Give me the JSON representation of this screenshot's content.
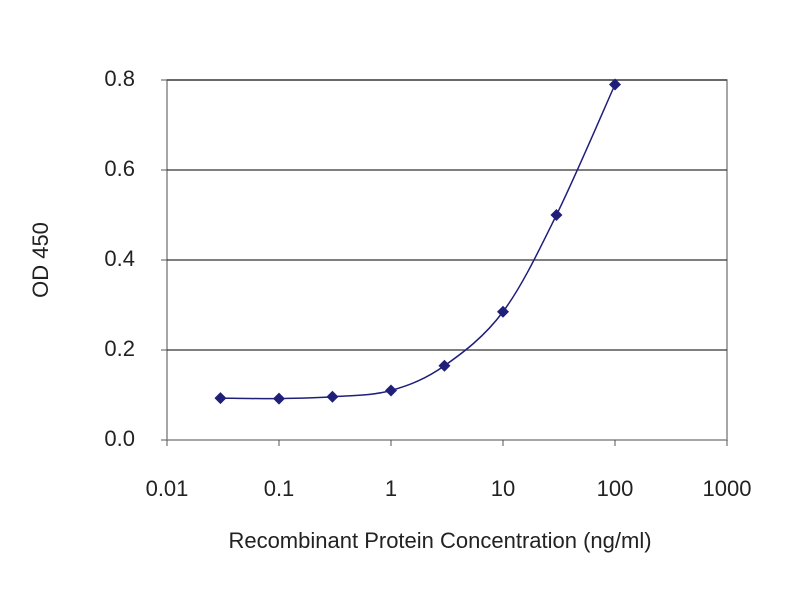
{
  "chart_data": {
    "type": "line",
    "x_label": "Recombinant Protein Concentration (ng/ml)",
    "y_label": "OD 450",
    "x": [
      0.03,
      0.1,
      0.3,
      1,
      3,
      10,
      30,
      100
    ],
    "series": [
      {
        "color": "#1f1f7a",
        "values": [
          0.093,
          0.092,
          0.096,
          0.11,
          0.165,
          0.285,
          0.5,
          0.79
        ]
      }
    ],
    "x_log": true,
    "xlim": [
      0.01,
      1000
    ],
    "xticks": [
      0.01,
      0.1,
      1,
      10,
      100,
      1000
    ],
    "ylim": [
      0,
      0.8
    ],
    "yticks": [
      {
        "value": 0,
        "label": "0.0"
      },
      0.2,
      0.4,
      0.6,
      0.8
    ],
    "grid": true
  }
}
